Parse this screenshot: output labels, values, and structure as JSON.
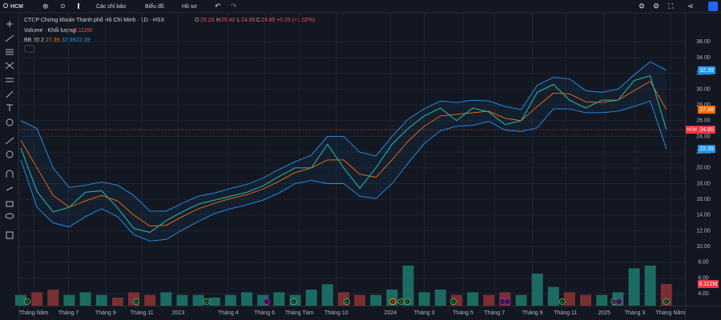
{
  "toolbar": {
    "symbol": "HCM",
    "interval": "D",
    "indicators": "Các chỉ báo",
    "chart": "Biểu đồ",
    "profile": "Hồ sơ"
  },
  "legend": {
    "title": "CTCP Chứng khoán Thành phố Hồ Chí Minh · 1D · HSX",
    "o_label": "O",
    "o": "25.20",
    "h_label": "H",
    "h": "25.40",
    "l_label": "L",
    "l": "24.85",
    "c_label": "C",
    "c": "24.85",
    "change": "+0.25 (+1.02%)",
    "volume_title": "Volume · Khối lượng",
    "volume": "8.112M",
    "bb_title": "BB 20 2",
    "bb_basis": "27.39",
    "bb_upper": "32.39",
    "bb_lower": "22.39",
    "price_tag": "HCM"
  },
  "chart_data": {
    "type": "line",
    "x": [
      0,
      2,
      4,
      6,
      8,
      10,
      12,
      14,
      16,
      18,
      20,
      22,
      24,
      26,
      28,
      30,
      32,
      34,
      36,
      38,
      40,
      42,
      44,
      46,
      48,
      50,
      52,
      54,
      56,
      58,
      60,
      62,
      64,
      66,
      68,
      70,
      72,
      74,
      76,
      78,
      80
    ],
    "series": [
      {
        "name": "HCM",
        "color": "#26a69a",
        "values": [
          22.5,
          17,
          14.4,
          15,
          16.9,
          17.1,
          14.9,
          12.3,
          11.8,
          13.3,
          14.4,
          15.4,
          15.9,
          16.4,
          16.9,
          17.7,
          18.9,
          20,
          20,
          23,
          20,
          17.4,
          20,
          23,
          25,
          26.6,
          27.6,
          26,
          27.6,
          27.1,
          25.5,
          26,
          29.6,
          30.6,
          28.6,
          27.6,
          28.6,
          28.6,
          31.1,
          31.7,
          24.85
        ]
      },
      {
        "name": "BB",
        "color": "#ff6d00",
        "values": [
          23.5,
          20,
          16.5,
          15,
          15.8,
          16.5,
          15.8,
          14,
          12.6,
          12.7,
          13.8,
          14.8,
          15.5,
          16.1,
          16.6,
          17.3,
          18.3,
          19.4,
          20,
          21,
          21,
          19.2,
          18.8,
          21,
          23.4,
          25.3,
          26.6,
          26.8,
          27,
          27.2,
          26.3,
          26,
          27.8,
          29.5,
          29.4,
          28.4,
          28.3,
          28.6,
          29.8,
          31,
          27.39
        ]
      },
      {
        "name": "BB upper",
        "color": "#2196f3",
        "values": [
          26,
          25,
          20,
          17.5,
          17.8,
          18.2,
          17.8,
          16.5,
          14.5,
          14.5,
          15.5,
          16.4,
          16.8,
          17.4,
          17.9,
          18.7,
          19.8,
          20.8,
          21.6,
          24,
          24,
          22,
          21.5,
          24,
          26.2,
          27.5,
          28.5,
          28.3,
          28.6,
          28.5,
          27.8,
          27.4,
          30.5,
          31.5,
          31.3,
          29.8,
          29.6,
          30,
          31.8,
          33.5,
          32.39
        ]
      },
      {
        "name": "BB lower",
        "color": "#2196f3",
        "values": [
          21,
          15,
          13,
          12.5,
          13.8,
          14.8,
          13.8,
          11.5,
          10.7,
          10.9,
          12.1,
          13.2,
          14.2,
          14.8,
          15.3,
          15.9,
          16.8,
          18,
          18.4,
          18,
          18,
          16.4,
          16.1,
          18,
          20.6,
          23.1,
          24.7,
          25.3,
          25.4,
          25.9,
          24.8,
          24.6,
          25.1,
          27.5,
          27.5,
          27,
          27,
          27.2,
          27.8,
          28.5,
          22.39
        ]
      }
    ],
    "volume": {
      "name": "Volume",
      "values": [
        4,
        5,
        6,
        4,
        5,
        4,
        3,
        5,
        4,
        5,
        4,
        4,
        3,
        4,
        5,
        4,
        5,
        4,
        6,
        8,
        5,
        4,
        4,
        6,
        15,
        5,
        6,
        4,
        5,
        4,
        5,
        4,
        12,
        7,
        5,
        4,
        4,
        5,
        14,
        15,
        8.112
      ],
      "vlim": [
        0,
        60
      ],
      "up_color": "#1c6b63",
      "down_color": "#7a2f33"
    },
    "xlim": [
      -0.2,
      82.3
    ],
    "ylim": [
      2.5,
      39.7
    ],
    "yticks": [
      {
        "value": 4,
        "label": "4.00"
      },
      {
        "value": 6,
        "label": "6.00"
      },
      {
        "value": 8,
        "label": "8.00"
      },
      {
        "value": 10,
        "label": "10.00"
      },
      {
        "value": 12,
        "label": "12.00"
      },
      {
        "value": 14,
        "label": "14.00"
      },
      {
        "value": 16,
        "label": "16.00"
      },
      {
        "value": 18,
        "label": "18.00"
      },
      {
        "value": 20,
        "label": "20.00"
      },
      {
        "value": 22,
        "label": "22.00"
      },
      {
        "value": 24,
        "label": "24.00"
      },
      {
        "value": 26,
        "label": "26.00"
      },
      {
        "value": 28,
        "label": "28.00"
      },
      {
        "value": 30,
        "label": "30.00"
      },
      {
        "value": 32,
        "label": "32.00"
      },
      {
        "value": 34,
        "label": "34.00"
      },
      {
        "value": 36,
        "label": "36.00"
      }
    ],
    "xticks": [
      {
        "value": 1.6,
        "label": "Tháng Năm"
      },
      {
        "value": 5.9,
        "label": "Tháng 7"
      },
      {
        "value": 10.5,
        "label": "Tháng 9"
      },
      {
        "value": 15,
        "label": "Tháng 11"
      },
      {
        "value": 19.5,
        "label": "2023"
      },
      {
        "value": 25.7,
        "label": "Tháng 4"
      },
      {
        "value": 30.2,
        "label": "Tháng 6"
      },
      {
        "value": 34.5,
        "label": "Tháng Tám"
      },
      {
        "value": 39.1,
        "label": "Tháng 10"
      },
      {
        "value": 45.8,
        "label": "2024"
      },
      {
        "value": 50,
        "label": "Tháng 3"
      },
      {
        "value": 54.8,
        "label": "Tháng 5"
      },
      {
        "value": 58.7,
        "label": "Tháng 7"
      },
      {
        "value": 63.4,
        "label": "Tháng 9"
      },
      {
        "value": 67.5,
        "label": "Tháng 11"
      },
      {
        "value": 72.3,
        "label": "2025"
      },
      {
        "value": 76.1,
        "label": "Tháng 3"
      },
      {
        "value": 80.5,
        "label": "Tháng Năm"
      }
    ],
    "grid": true,
    "events": [
      {
        "x": 0.8,
        "label": "E",
        "color": "#4caf50"
      },
      {
        "x": 14.3,
        "label": "E",
        "color": "#4caf50"
      },
      {
        "x": 23,
        "label": "E",
        "color": "#4caf50"
      },
      {
        "x": 30.5,
        "label": "D",
        "color": "#9c27b0"
      },
      {
        "x": 33.8,
        "label": "E",
        "color": "#4caf50"
      },
      {
        "x": 40.4,
        "label": "E",
        "color": "#4caf50"
      },
      {
        "x": 46.1,
        "label": "S",
        "color": "#ff9800"
      },
      {
        "x": 47.1,
        "label": "E",
        "color": "#4caf50"
      },
      {
        "x": 47.9,
        "label": "E",
        "color": "#4caf50"
      },
      {
        "x": 53.6,
        "label": "E",
        "color": "#4caf50"
      },
      {
        "x": 59.7,
        "label": "D",
        "color": "#9c27b0"
      },
      {
        "x": 60.3,
        "label": "D",
        "color": "#9c27b0"
      },
      {
        "x": 67.1,
        "label": "E",
        "color": "#4caf50"
      },
      {
        "x": 73.5,
        "label": "E",
        "color": "#4caf50"
      },
      {
        "x": 74.1,
        "label": "D",
        "color": "#9c27b0"
      },
      {
        "x": 80,
        "label": "E",
        "color": "#4caf50"
      }
    ]
  }
}
